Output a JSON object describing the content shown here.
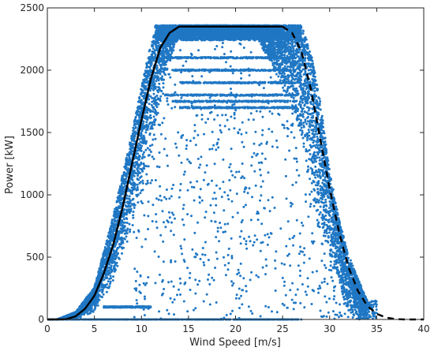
{
  "chart_data": {
    "type": "scatter",
    "title": "",
    "xlabel": "Wind Speed [m/s]",
    "ylabel": "Power [kW]",
    "xlim": [
      0,
      40
    ],
    "ylim": [
      0,
      2500
    ],
    "xticks": [
      0,
      5,
      10,
      15,
      20,
      25,
      30,
      35,
      40
    ],
    "yticks": [
      0,
      500,
      1000,
      1500,
      2000,
      2500
    ],
    "xtick_labels": [
      "0",
      "5",
      "10",
      "15",
      "20",
      "25",
      "30",
      "35",
      "40"
    ],
    "ytick_labels": [
      "0",
      "500",
      "1000",
      "1500",
      "2000",
      "2500"
    ],
    "grid": false,
    "legend": "none",
    "scatter_color": "#1f77c4",
    "curve_color": "#000000",
    "power_curve": {
      "style": "solid",
      "x": [
        0,
        1,
        2,
        3,
        4,
        5,
        6,
        7,
        8,
        9,
        10,
        11,
        12,
        13,
        14,
        15,
        16,
        17,
        18,
        19,
        20,
        21,
        22,
        23,
        24,
        25
      ],
      "y": [
        0,
        0,
        2,
        25,
        85,
        190,
        370,
        600,
        900,
        1250,
        1600,
        1930,
        2180,
        2300,
        2350,
        2350,
        2350,
        2350,
        2350,
        2350,
        2350,
        2350,
        2350,
        2350,
        2350,
        2350
      ]
    },
    "cutout_curve": {
      "style": "dashed",
      "x": [
        25,
        26,
        27,
        28,
        29,
        30,
        31,
        32,
        33,
        34,
        35,
        36,
        37,
        38,
        39,
        40
      ],
      "y": [
        2350,
        2300,
        2150,
        1850,
        1450,
        1050,
        700,
        420,
        230,
        110,
        45,
        15,
        3,
        0,
        0,
        0
      ]
    },
    "scatter_summary": {
      "rated_power": 2360,
      "band_upper_edge": [
        [
          1,
          0
        ],
        [
          3,
          60
        ],
        [
          5,
          260
        ],
        [
          7,
          830
        ],
        [
          9,
          1500
        ],
        [
          10.5,
          2050
        ],
        [
          11.5,
          2360
        ],
        [
          27,
          2360
        ],
        [
          28,
          2150
        ],
        [
          29,
          1750
        ],
        [
          30,
          1200
        ],
        [
          31,
          800
        ],
        [
          32,
          520
        ],
        [
          33,
          330
        ],
        [
          34,
          150
        ]
      ],
      "band_lower_edge": [
        [
          3,
          0
        ],
        [
          5,
          60
        ],
        [
          7,
          280
        ],
        [
          9,
          720
        ],
        [
          11,
          1300
        ],
        [
          12.5,
          1950
        ],
        [
          14,
          2280
        ],
        [
          22,
          2300
        ],
        [
          24,
          2000
        ],
        [
          26,
          1700
        ],
        [
          27,
          1400
        ],
        [
          28,
          1000
        ],
        [
          29,
          700
        ],
        [
          30,
          450
        ],
        [
          31,
          250
        ],
        [
          32,
          50
        ],
        [
          33,
          0
        ]
      ],
      "curtailment_levels": [
        2100,
        2000,
        1900,
        1800,
        1750,
        1700,
        100
      ],
      "zero_power_x_range": [
        0,
        27
      ]
    }
  }
}
